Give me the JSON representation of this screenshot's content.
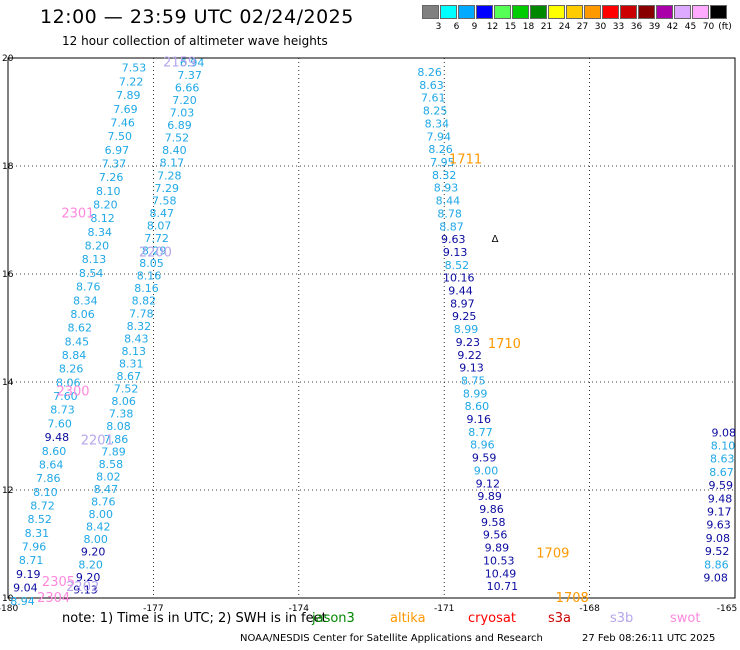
{
  "header": {
    "title": "12:00 — 23:59 UTC 02/24/2025",
    "subtitle": "12 hour collection of altimeter wave heights"
  },
  "colorbar": {
    "unit": "(ft)",
    "stops": [
      {
        "label": "3",
        "color": "#808080"
      },
      {
        "label": "6",
        "color": "#00ffff"
      },
      {
        "label": "9",
        "color": "#00aaff"
      },
      {
        "label": "12",
        "color": "#0000ff"
      },
      {
        "label": "15",
        "color": "#55ff55"
      },
      {
        "label": "18",
        "color": "#00cc00"
      },
      {
        "label": "21",
        "color": "#008800"
      },
      {
        "label": "24",
        "color": "#ffff00"
      },
      {
        "label": "27",
        "color": "#ffcc00"
      },
      {
        "label": "30",
        "color": "#ff9900"
      },
      {
        "label": "33",
        "color": "#ff0000"
      },
      {
        "label": "36",
        "color": "#cc0000"
      },
      {
        "label": "39",
        "color": "#880000"
      },
      {
        "label": "42",
        "color": "#aa00aa"
      },
      {
        "label": "45",
        "color": "#ddaaff"
      },
      {
        "label": "70",
        "color": "#ffaaff"
      },
      {
        "label": "",
        "color": "#000000"
      }
    ]
  },
  "chart_data": {
    "type": "scatter",
    "xlim": [
      -180,
      -165
    ],
    "ylim": [
      10,
      20
    ],
    "x_ticks": [
      "-180",
      "-177",
      "-174",
      "-171",
      "-168",
      "-165"
    ],
    "x_tick_values": [
      -180,
      -177,
      -174,
      -171,
      -168,
      -165
    ],
    "y_ticks": [
      "10",
      "12",
      "14",
      "16",
      "18",
      "20"
    ],
    "y_tick_values": [
      10,
      12,
      14,
      16,
      18,
      20
    ],
    "grid": true,
    "color_classes": {
      "light": "#1fa8e6",
      "dark": "#0a0aa0",
      "lavender": "#b6a6ec",
      "pink": "#ff88dd",
      "orange": "#ff9900"
    },
    "tracks": [
      {
        "name": "track-a",
        "x_start": -177.4,
        "x_end": -179.7,
        "y_start": 19.82,
        "y_end": 9.94,
        "values": [
          "7.53",
          "7.22",
          "7.89",
          "7.69",
          "7.46",
          "7.50",
          "6.97",
          "7.37",
          "7.26",
          "8.10",
          "8.20",
          "8.12",
          "8.34",
          "8.20",
          "8.13",
          "8.54",
          "8.76",
          "8.34",
          "8.06",
          "8.62",
          "8.45",
          "8.84",
          "8.26",
          "8.06",
          "7.60",
          "8.73",
          "7.60",
          "9.48",
          "8.60",
          "8.64",
          "7.86",
          "8.10",
          "8.72",
          "8.52",
          "8.31",
          "7.96",
          "8.71",
          "9.19",
          "9.04",
          "8.94"
        ],
        "colors": [
          "light",
          "light",
          "light",
          "light",
          "light",
          "light",
          "light",
          "light",
          "light",
          "light",
          "light",
          "light",
          "light",
          "light",
          "light",
          "light",
          "light",
          "light",
          "light",
          "light",
          "light",
          "light",
          "light",
          "light",
          "light",
          "light",
          "light",
          "dark",
          "light",
          "light",
          "light",
          "light",
          "light",
          "light",
          "light",
          "light",
          "light",
          "dark",
          "dark",
          "light"
        ]
      },
      {
        "name": "track-b",
        "x_start": -176.2,
        "x_end": -178.4,
        "y_start": 19.92,
        "y_end": 10.16,
        "values": [
          "6.94",
          "7.37",
          "6.66",
          "7.20",
          "7.03",
          "6.89",
          "7.52",
          "8.40",
          "8.17",
          "7.28",
          "7.29",
          "7.58",
          "8.47",
          "8.07",
          "7.72",
          "8.29",
          "8.05",
          "8.16",
          "8.16",
          "8.82",
          "7.78",
          "8.32",
          "8.43",
          "8.13",
          "8.31",
          "8.67",
          "7.52",
          "8.06",
          "7.38",
          "8.08",
          "7.86",
          "7.89",
          "8.58",
          "8.02",
          "8.47",
          "8.76",
          "8.00",
          "8.42",
          "8.00",
          "9.20",
          "8.20",
          "9.20",
          "9.13"
        ],
        "colors": [
          "light",
          "light",
          "light",
          "light",
          "light",
          "light",
          "light",
          "light",
          "light",
          "light",
          "light",
          "light",
          "light",
          "light",
          "light",
          "light",
          "light",
          "light",
          "light",
          "light",
          "light",
          "light",
          "light",
          "light",
          "light",
          "light",
          "light",
          "light",
          "light",
          "light",
          "light",
          "light",
          "light",
          "light",
          "light",
          "light",
          "light",
          "light",
          "light",
          "dark",
          "light",
          "dark",
          "dark"
        ]
      },
      {
        "name": "track-c",
        "x_start": -171.3,
        "x_end": -169.8,
        "y_start": 19.74,
        "y_end": 10.22,
        "values": [
          "8.26",
          "8.63",
          "7.61",
          "8.25",
          "8.34",
          "7.94",
          "8.26",
          "7.95",
          "8.32",
          "8.93",
          "8.44",
          "8.78",
          "8.87",
          "9.63",
          "9.13",
          "8.52",
          "10.16",
          "9.44",
          "8.97",
          "9.25",
          "8.99",
          "9.23",
          "9.22",
          "9.13",
          "8.75",
          "8.99",
          "8.60",
          "9.16",
          "8.77",
          "8.96",
          "9.59",
          "9.00",
          "9.12",
          "9.89",
          "9.86",
          "9.58",
          "9.56",
          "9.89",
          "10.53",
          "10.49",
          "10.71"
        ],
        "colors": [
          "light",
          "light",
          "light",
          "light",
          "light",
          "light",
          "light",
          "light",
          "light",
          "light",
          "light",
          "light",
          "light",
          "dark",
          "dark",
          "light",
          "dark",
          "dark",
          "dark",
          "dark",
          "light",
          "dark",
          "dark",
          "dark",
          "light",
          "light",
          "light",
          "dark",
          "light",
          "light",
          "dark",
          "light",
          "dark",
          "dark",
          "dark",
          "dark",
          "dark",
          "dark",
          "dark",
          "dark",
          "dark"
        ]
      },
      {
        "name": "track-d",
        "x_start": -165.05,
        "x_end": -165.4,
        "y_start": 16.0,
        "y_end": 10.38,
        "values": [
          "",
          "",
          "",
          "",
          "",
          "",
          "",
          "",
          "",
          "",
          "",
          "",
          "9.08",
          "8.10",
          "8.63",
          "8.67",
          "9.59",
          "9.48",
          "9.17",
          "9.63",
          "9.08",
          "9.52",
          "8.86",
          "9.08"
        ],
        "colors": [
          "light",
          "light",
          "light",
          "light",
          "light",
          "dark",
          "light",
          "light",
          "light",
          "light",
          "light",
          "light",
          "dark",
          "light",
          "light",
          "light",
          "dark",
          "dark",
          "dark",
          "dark",
          "dark",
          "dark",
          "light",
          "dark"
        ]
      }
    ],
    "time_labels": [
      {
        "text": "2159",
        "x": -176.8,
        "y": 19.92,
        "color": "lavender"
      },
      {
        "text": "1711",
        "x": -170.9,
        "y": 18.12,
        "color": "orange"
      },
      {
        "text": "2301",
        "x": -178.9,
        "y": 17.12,
        "color": "pink"
      },
      {
        "text": "2200",
        "x": -177.3,
        "y": 16.4,
        "color": "lavender"
      },
      {
        "text": "1710",
        "x": -170.1,
        "y": 14.7,
        "color": "orange"
      },
      {
        "text": "2300",
        "x": -179.0,
        "y": 13.82,
        "color": "pink"
      },
      {
        "text": "2201",
        "x": -178.5,
        "y": 12.92,
        "color": "lavender"
      },
      {
        "text": "1709",
        "x": -169.1,
        "y": 10.82,
        "color": "orange"
      },
      {
        "text": "2305",
        "x": -179.3,
        "y": 10.3,
        "color": "pink"
      },
      {
        "text": "2202",
        "x": -178.8,
        "y": 10.2,
        "color": "lavender"
      },
      {
        "text": "2304",
        "x": -179.4,
        "y": 10.0,
        "color": "pink"
      },
      {
        "text": "1708",
        "x": -168.7,
        "y": 10.0,
        "color": "orange"
      }
    ],
    "markers": [
      {
        "text": "Δ",
        "x": -169.95,
        "y": 16.67
      }
    ]
  },
  "footer": {
    "note": "note:  1) Time is in UTC; 2) SWH is in feet",
    "credit": "NOAA/NESDIS Center for Satellite Applications and Research",
    "timestamp": "27 Feb 08:26:11 UTC 2025",
    "satellites": [
      {
        "name": "jason3",
        "color": "#008800"
      },
      {
        "name": "altika",
        "color": "#ff9900"
      },
      {
        "name": "cryosat",
        "color": "#ff0000"
      },
      {
        "name": "s3a",
        "color": "#cc0000"
      },
      {
        "name": "s3b",
        "color": "#b6a6ec"
      },
      {
        "name": "swot",
        "color": "#ff88dd"
      }
    ]
  }
}
